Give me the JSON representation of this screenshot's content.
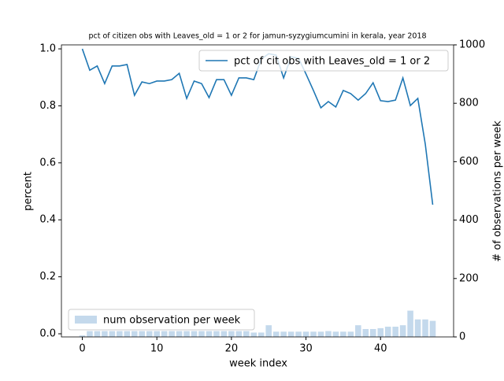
{
  "chart_data": {
    "type": "line",
    "title": "pct of citizen obs with Leaves_old = 1 or 2 for jamun-syzygiumcumini in kerala, year 2018",
    "xlabel": "week index",
    "ylabel": "percent",
    "y2label": "# of observations per week",
    "x": [
      0,
      1,
      2,
      3,
      4,
      5,
      6,
      7,
      8,
      9,
      10,
      11,
      12,
      13,
      14,
      15,
      16,
      17,
      18,
      19,
      20,
      21,
      22,
      23,
      24,
      25,
      26,
      27,
      28,
      29,
      30,
      31,
      32,
      33,
      34,
      35,
      36,
      37,
      38,
      39,
      40,
      41,
      42,
      43,
      44,
      45,
      46,
      47
    ],
    "series": [
      {
        "name": "pct of cit obs with Leaves_old = 1 or 2",
        "color": "#1f77b4",
        "type": "line",
        "legend": "upper right",
        "values": [
          1.0,
          0.925,
          0.94,
          0.878,
          0.94,
          0.94,
          0.945,
          0.837,
          0.884,
          0.878,
          0.887,
          0.887,
          0.892,
          0.914,
          0.826,
          0.887,
          0.878,
          0.829,
          0.892,
          0.892,
          0.837,
          0.898,
          0.898,
          0.892,
          0.964,
          0.983,
          0.978,
          0.898,
          0.972,
          0.967,
          0.912,
          0.854,
          0.793,
          0.815,
          0.796,
          0.854,
          0.843,
          0.82,
          0.843,
          0.881,
          0.818,
          0.815,
          0.82,
          0.898,
          0.801,
          0.826,
          0.666,
          0.453
        ]
      },
      {
        "name": "num observation per week",
        "color": "#c4d9ec",
        "type": "bar",
        "axis": "y2",
        "legend": "lower left",
        "values": [
          5,
          20,
          20,
          20,
          20,
          20,
          20,
          20,
          20,
          20,
          20,
          20,
          20,
          20,
          20,
          20,
          20,
          20,
          20,
          20,
          20,
          20,
          20,
          15,
          15,
          40,
          18,
          18,
          18,
          18,
          18,
          18,
          18,
          20,
          18,
          18,
          18,
          40,
          27,
          27,
          30,
          35,
          35,
          40,
          90,
          60,
          60,
          55
        ]
      }
    ],
    "xlim": [
      -2.8,
      49.8
    ],
    "xticks": [
      0,
      10,
      20,
      30,
      40
    ],
    "ylim": [
      -0.011,
      1.014
    ],
    "yticks": [
      {
        "value": 0,
        "label": "0.0"
      },
      {
        "value": 0.2,
        "label": "0.2"
      },
      {
        "value": 0.4,
        "label": "0.4"
      },
      {
        "value": 0.6,
        "label": "0.6"
      },
      {
        "value": 0.8,
        "label": "0.8"
      },
      {
        "value": 1,
        "label": "1.0"
      }
    ],
    "y2lim": [
      0,
      1000
    ],
    "y2ticks": [
      0,
      200,
      400,
      600,
      800,
      1000
    ]
  }
}
